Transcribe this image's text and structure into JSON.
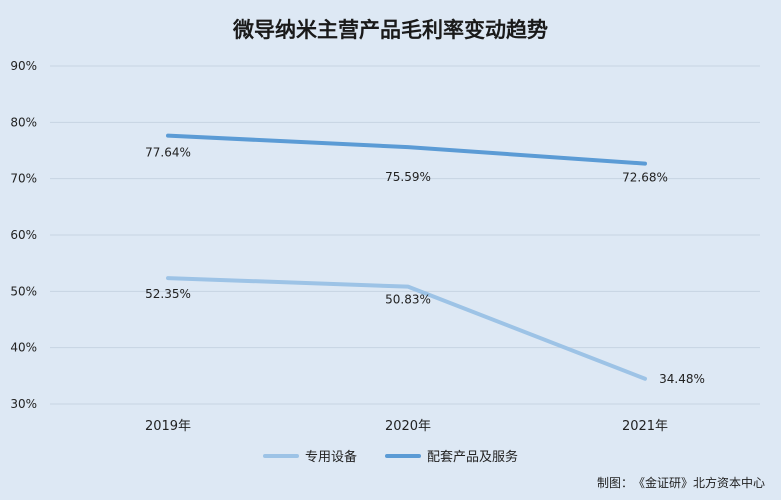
{
  "title": "微导纳米主营产品毛利率变动趋势",
  "credit": {
    "label": "制图：",
    "text": "《金证研》北方资本中心"
  },
  "chart_data": {
    "type": "line",
    "title": "微导纳米主营产品毛利率变动趋势",
    "categories": [
      "2019年",
      "2020年",
      "2021年"
    ],
    "yticks": [
      "30%",
      "40%",
      "50%",
      "60%",
      "70%",
      "80%",
      "90%"
    ],
    "ylim": [
      30,
      90
    ],
    "grid": true,
    "legend_position": "bottom",
    "series": [
      {
        "name": "专用设备",
        "values": [
          52.35,
          50.83,
          34.48
        ],
        "labels": [
          "52.35%",
          "50.83%",
          "34.48%"
        ],
        "color": "#9dc3e6"
      },
      {
        "name": "配套产品及服务",
        "values": [
          77.64,
          75.59,
          72.68
        ],
        "labels": [
          "77.64%",
          "75.59%",
          "72.68%"
        ],
        "color": "#5b9bd5"
      }
    ]
  }
}
